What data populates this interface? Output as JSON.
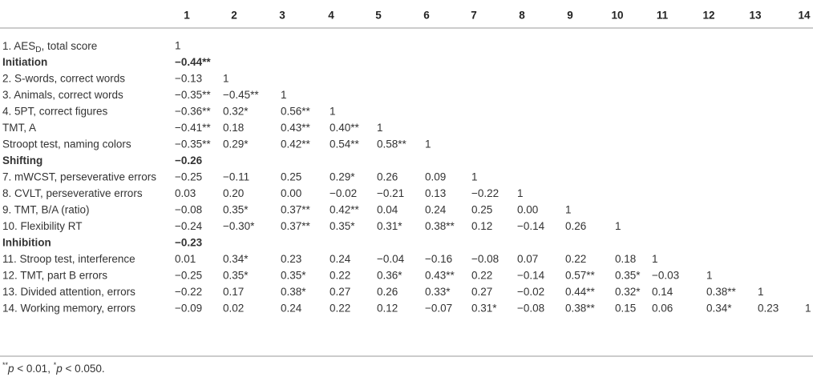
{
  "header": {
    "columns": [
      "1",
      "2",
      "3",
      "4",
      "5",
      "6",
      "7",
      "8",
      "9",
      "10",
      "11",
      "12",
      "13",
      "14"
    ]
  },
  "table": {
    "rows": [
      {
        "label": [
          "1. AES",
          "D",
          ", total score"
        ],
        "cells": [
          "1"
        ]
      },
      {
        "label": "Initiation",
        "bold": true,
        "cells": [
          "−0.44**"
        ]
      },
      {
        "label": "2. S-words, correct words",
        "cells": [
          "−0.13",
          "1"
        ]
      },
      {
        "label": "3. Animals, correct words",
        "cells": [
          "−0.35**",
          "−0.45**",
          "1"
        ]
      },
      {
        "label": "4. 5PT, correct figures",
        "cells": [
          "−0.36**",
          "0.32*",
          "0.56**",
          "1"
        ]
      },
      {
        "label": "TMT, A",
        "cells": [
          "−0.41**",
          "0.18",
          "0.43**",
          "0.40**",
          "1"
        ]
      },
      {
        "label": "Stroopt test, naming colors",
        "cells": [
          "−0.35**",
          "0.29*",
          "0.42**",
          "0.54**",
          "0.58**",
          "1"
        ]
      },
      {
        "label": "Shifting",
        "bold": true,
        "cells": [
          "−0.26"
        ]
      },
      {
        "label": "7. mWCST, perseverative errors",
        "cells": [
          "−0.25",
          "−0.11",
          "0.25",
          "0.29*",
          "0.26",
          "0.09",
          "1"
        ]
      },
      {
        "label": "8. CVLT, perseverative errors",
        "cells": [
          "0.03",
          "0.20",
          "0.00",
          "−0.02",
          "−0.21",
          "0.13",
          "−0.22",
          "1"
        ]
      },
      {
        "label": "9. TMT, B/A (ratio)",
        "cells": [
          "−0.08",
          "0.35*",
          "0.37**",
          "0.42**",
          "0.04",
          "0.24",
          "0.25",
          "0.00",
          "1"
        ]
      },
      {
        "label": "10. Flexibility RT",
        "cells": [
          "−0.24",
          "−0.30*",
          "0.37**",
          "0.35*",
          "0.31*",
          "0.38**",
          "0.12",
          "−0.14",
          "0.26",
          "1"
        ]
      },
      {
        "label": "Inhibition",
        "bold": true,
        "cells": [
          "−0.23"
        ]
      },
      {
        "label": "11. Stroop test, interference",
        "cells": [
          "0.01",
          "0.34*",
          "0.23",
          "0.24",
          "−0.04",
          "−0.16",
          "−0.08",
          "0.07",
          "0.22",
          "0.18",
          "1"
        ]
      },
      {
        "label": "12. TMT, part B errors",
        "cells": [
          "−0.25",
          "0.35*",
          "0.35*",
          "0.22",
          "0.36*",
          "0.43**",
          "0.22",
          "−0.14",
          "0.57**",
          "0.35*",
          "−0.03",
          "1"
        ]
      },
      {
        "label": "13. Divided attention, errors",
        "cells": [
          "−0.22",
          "0.17",
          "0.38*",
          "0.27",
          "0.26",
          "0.33*",
          "0.27",
          "−0.02",
          "0.44**",
          "0.32*",
          "0.14",
          "0.38**",
          "1"
        ]
      },
      {
        "label": "14. Working memory, errors",
        "cells": [
          "−0.09",
          "0.02",
          "0.24",
          "0.22",
          "0.12",
          "−0.07",
          "0.31*",
          "−0.08",
          "0.38**",
          "0.15",
          "0.06",
          "0.34*",
          "0.23",
          "1"
        ]
      }
    ]
  },
  "footnote": [
    "**",
    "p",
    " < 0.01,  ",
    "*",
    "p",
    " < 0.050."
  ]
}
